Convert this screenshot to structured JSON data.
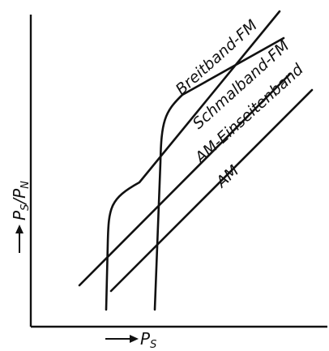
{
  "chart_data": {
    "type": "line",
    "xlabel": {
      "main": "P",
      "sub": "S"
    },
    "ylabel": {
      "main": "P",
      "sub1": "S",
      "sep": "/",
      "main2": "P",
      "sub2": "N"
    },
    "grid": false,
    "legend": "none",
    "series": [
      {
        "name": "Breitband-FM"
      },
      {
        "name": "Schmalband-FM"
      },
      {
        "name": "AM-Einseitenband"
      },
      {
        "name": "AM"
      }
    ]
  }
}
